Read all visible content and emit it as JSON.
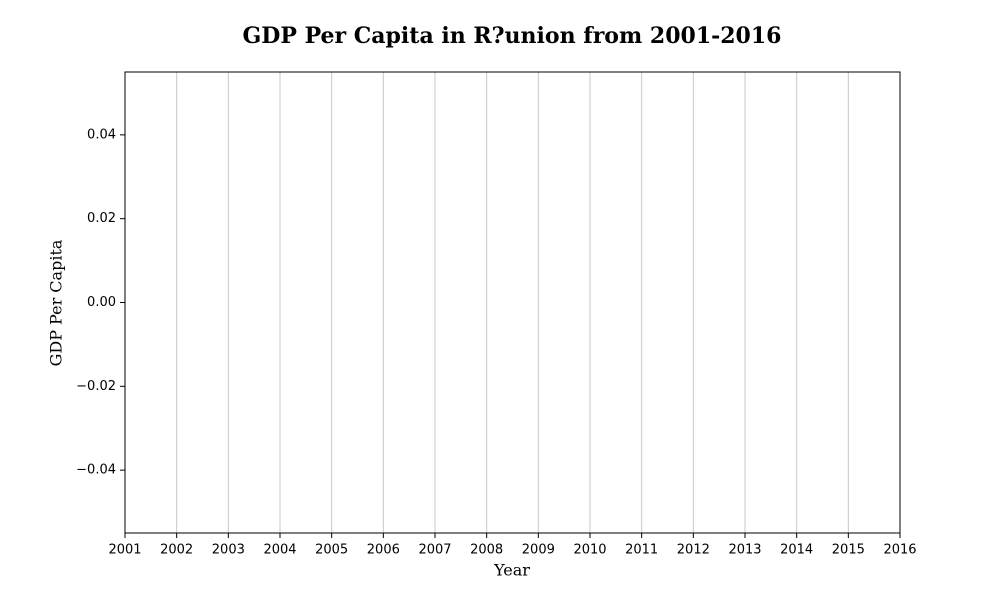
{
  "chart_data": {
    "type": "line",
    "title": "GDP Per Capita in R?union from 2001-2016",
    "xlabel": "Year",
    "ylabel": "GDP Per Capita",
    "xlim": [
      2001,
      2016
    ],
    "xticks": [
      2001,
      2002,
      2003,
      2004,
      2005,
      2006,
      2007,
      2008,
      2009,
      2010,
      2011,
      2012,
      2013,
      2014,
      2015,
      2016
    ],
    "ylim": [
      -0.055,
      0.055
    ],
    "yticks": [
      {
        "value": -0.04,
        "label": "−0.04"
      },
      {
        "value": -0.02,
        "label": "−0.02"
      },
      {
        "value": 0,
        "label": "0.00"
      },
      0.02,
      0.04
    ],
    "xgrid": true,
    "ygrid": false
  }
}
